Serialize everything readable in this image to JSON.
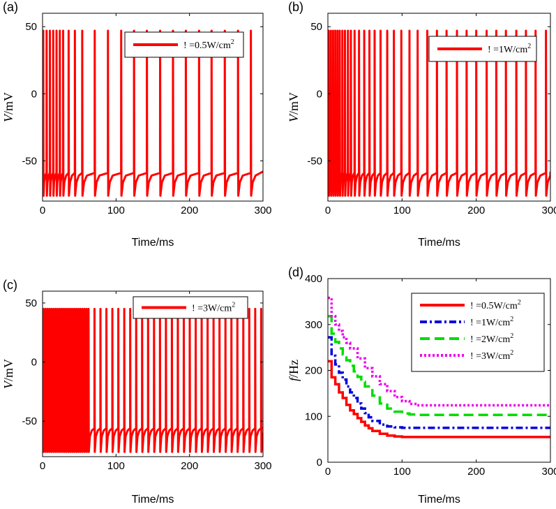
{
  "chart_data": [
    {
      "panel_label": "(a)",
      "type": "line",
      "title": "",
      "xlabel": "Time/ms",
      "ylabel_italic": "V",
      "ylabel_rest": "/mV",
      "xlim": [
        0,
        300
      ],
      "ylim": [
        -80,
        60
      ],
      "xticks": [
        0,
        100,
        200,
        300
      ],
      "yticks": [
        -50,
        0,
        50
      ],
      "legend": [
        {
          "label": "! =0.5W/cm",
          "sup": "2",
          "color": "#ff0000",
          "dash": "solid"
        }
      ],
      "spike_train": {
        "peak": 47,
        "trough": -76,
        "rest": -60,
        "first_peak": 20,
        "spike_times": [
          1,
          5.5,
          10,
          14.5,
          19,
          23.5,
          28,
          35.5,
          44,
          54,
          71,
          89,
          107,
          124.5,
          142,
          160,
          177.5,
          195,
          213,
          230,
          248,
          266,
          283.5
        ]
      },
      "color": "#ff0000"
    },
    {
      "panel_label": "(b)",
      "type": "line",
      "title": "",
      "xlabel": "Time/ms",
      "ylabel_italic": "V",
      "ylabel_rest": "/mV",
      "xlim": [
        0,
        300
      ],
      "ylim": [
        -80,
        60
      ],
      "xticks": [
        0,
        100,
        200,
        300
      ],
      "yticks": [
        -50,
        0,
        50
      ],
      "legend": [
        {
          "label": "! =1W/cm",
          "sup": "2",
          "color": "#ff0000",
          "dash": "solid"
        }
      ],
      "spike_train": {
        "peak": 47,
        "trough": -76,
        "rest": -60,
        "first_peak": 20,
        "spike_times": [
          1,
          4,
          7,
          10,
          13,
          16,
          19.5,
          23,
          27,
          31,
          36,
          42,
          49,
          56,
          63,
          71,
          80,
          89,
          99,
          110,
          121,
          134,
          147,
          160,
          174,
          187,
          200,
          214,
          227,
          240,
          254,
          267,
          280,
          294
        ]
      },
      "color": "#ff0000"
    },
    {
      "panel_label": "(c)",
      "type": "line",
      "title": "",
      "xlabel": "Time/ms",
      "ylabel_italic": "V",
      "ylabel_rest": "/mV",
      "xlim": [
        0,
        300
      ],
      "ylim": [
        -80,
        60
      ],
      "xticks": [
        0,
        100,
        200,
        300
      ],
      "yticks": [
        -50,
        0,
        50
      ],
      "legend": [
        {
          "label": "! =3W/cm",
          "sup": "2",
          "color": "#ff0000",
          "dash": "solid"
        }
      ],
      "spike_train": {
        "peak": 45,
        "trough": -76,
        "rest": -57,
        "first_peak": 20,
        "dense_until": 62,
        "dense_isi": 2.8,
        "late_isi": 8.1
      },
      "color": "#ff0000"
    },
    {
      "panel_label": "(d)",
      "type": "line",
      "title": "",
      "xlabel": "Time/ms",
      "ylabel_italic": "f",
      "ylabel_rest": "/Hz",
      "xlim": [
        0,
        300
      ],
      "ylim": [
        0,
        400
      ],
      "xticks": [
        0,
        100,
        200,
        300
      ],
      "yticks": [
        0,
        100,
        200,
        300,
        400
      ],
      "series": [
        {
          "name": "! =0.5W/cm",
          "sup": "2",
          "color": "#ff0000",
          "dash": "solid",
          "x": [
            0,
            5,
            10,
            15,
            20,
            25,
            30,
            35,
            40,
            45,
            50,
            55,
            60,
            70,
            80,
            90,
            100,
            300
          ],
          "y": [
            220,
            185,
            170,
            152,
            140,
            125,
            113,
            105,
            96,
            88,
            80,
            74,
            68,
            62,
            58,
            56,
            55,
            55
          ]
        },
        {
          "name": "! =1W/cm",
          "sup": "2",
          "color": "#0000dd",
          "dash": "10,4,3,4",
          "x": [
            0,
            5,
            10,
            15,
            20,
            25,
            30,
            35,
            40,
            45,
            50,
            55,
            60,
            70,
            80,
            90,
            100,
            300
          ],
          "y": [
            272,
            232,
            213,
            195,
            180,
            165,
            152,
            140,
            128,
            117,
            107,
            98,
            90,
            82,
            78,
            76,
            75,
            75
          ]
        },
        {
          "name": "! =2W/cm",
          "sup": "2",
          "color": "#00dd00",
          "dash": "14,7",
          "x": [
            0,
            5,
            10,
            15,
            20,
            25,
            30,
            35,
            40,
            45,
            50,
            60,
            70,
            80,
            90,
            100,
            110,
            120,
            300
          ],
          "y": [
            318,
            280,
            262,
            248,
            235,
            222,
            210,
            198,
            186,
            175,
            165,
            145,
            128,
            117,
            110,
            106,
            104,
            103,
            103
          ]
        },
        {
          "name": "! =3W/cm",
          "sup": "2",
          "color": "#ee00ee",
          "dash": "3,3",
          "x": [
            0,
            5,
            10,
            15,
            20,
            25,
            30,
            40,
            50,
            60,
            70,
            80,
            90,
            100,
            110,
            120,
            300
          ],
          "y": [
            358,
            318,
            300,
            286,
            272,
            260,
            248,
            226,
            205,
            187,
            170,
            155,
            142,
            133,
            127,
            124,
            124
          ]
        }
      ]
    }
  ]
}
